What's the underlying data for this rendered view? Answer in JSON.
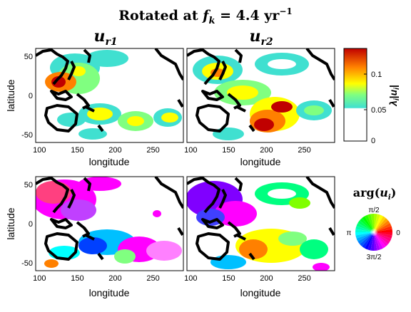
{
  "figure_title": "Rotated at f_k = 4.4 yr^-1",
  "title_parts": {
    "prefix": "Rotated at ",
    "f": "f",
    "k": "k",
    "eq": " = 4.4 yr",
    "exp": "−1"
  },
  "panel_titles": [
    {
      "main": "u",
      "sub": "r1"
    },
    {
      "main": "u",
      "sub": "r2"
    }
  ],
  "xlabel": "longitude",
  "ylabel": "latitude",
  "colorbar": {
    "label": "λ_i|u_i|",
    "ticks": [
      "0",
      "0.05",
      "0.1"
    ],
    "colormap": "jet-with-white-below-threshold"
  },
  "phase_wheel": {
    "title": "arg(u_i)",
    "labels": {
      "top": "π/2",
      "left": "π",
      "right": "0",
      "bottom": "3π/2"
    }
  },
  "colors": {
    "coast": "#000000",
    "panel_border": "#000000"
  },
  "chart_data": [
    {
      "type": "heatmap",
      "panel": "top-left",
      "title": "u_r1",
      "quantity": "amplitude λ_i|u_i|",
      "xlabel": "longitude",
      "ylabel": "latitude",
      "xlim": [
        95,
        290
      ],
      "ylim": [
        -60,
        60
      ],
      "xticks": [
        100,
        150,
        200,
        250
      ],
      "yticks": [
        50,
        0,
        -50
      ],
      "hotspots": [
        {
          "lon": 125,
          "lat": 15,
          "value": 0.13
        },
        {
          "lon": 135,
          "lat": 40,
          "value": 0.08
        },
        {
          "lon": 160,
          "lat": -15,
          "value": 0.09
        },
        {
          "lon": 200,
          "lat": -25,
          "value": 0.08
        },
        {
          "lon": 260,
          "lat": -32,
          "value": 0.08
        }
      ]
    },
    {
      "type": "heatmap",
      "panel": "top-right",
      "title": "u_r2",
      "quantity": "amplitude λ_i|u_i|",
      "xlabel": "longitude",
      "ylabel": "",
      "xlim": [
        95,
        290
      ],
      "ylim": [
        -60,
        60
      ],
      "xticks": [
        100,
        150,
        200,
        250
      ],
      "yticks": [],
      "hotspots": [
        {
          "lon": 130,
          "lat": 25,
          "value": 0.09
        },
        {
          "lon": 165,
          "lat": 5,
          "value": 0.09
        },
        {
          "lon": 185,
          "lat": -35,
          "value": 0.14
        },
        {
          "lon": 210,
          "lat": -15,
          "value": 0.11
        },
        {
          "lon": 225,
          "lat": 40,
          "value": 0.06
        }
      ]
    },
    {
      "type": "heatmap",
      "panel": "bottom-left",
      "quantity": "phase arg(u_i)",
      "xlabel": "longitude",
      "ylabel": "latitude",
      "xlim": [
        95,
        290
      ],
      "ylim": [
        -60,
        60
      ],
      "xticks": [
        100,
        150,
        200,
        250
      ],
      "yticks": [
        50,
        0,
        -50
      ]
    },
    {
      "type": "heatmap",
      "panel": "bottom-right",
      "quantity": "phase arg(u_i)",
      "xlabel": "longitude",
      "ylabel": "",
      "xlim": [
        95,
        290
      ],
      "ylim": [
        -60,
        60
      ],
      "xticks": [
        100,
        150,
        200,
        250
      ],
      "yticks": []
    }
  ]
}
